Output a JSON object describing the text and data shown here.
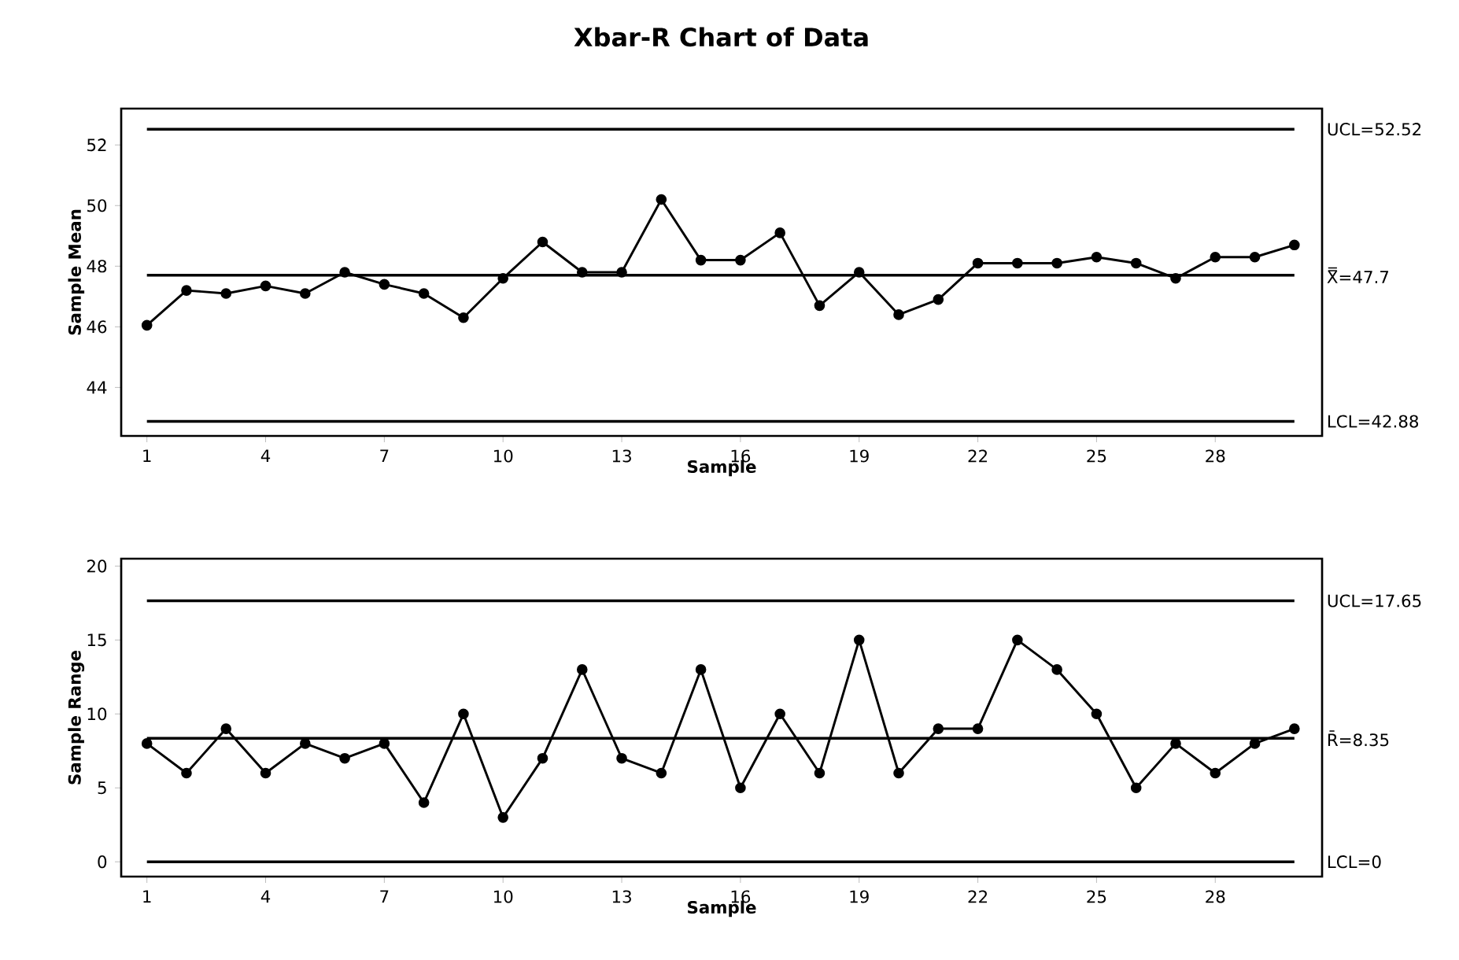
{
  "chart_data": [
    {
      "type": "line",
      "title": "Xbar-R Chart of Data",
      "xlabel": "Sample",
      "ylabel": "Sample Mean",
      "marker": "circle",
      "x": [
        1,
        2,
        3,
        4,
        5,
        6,
        7,
        8,
        9,
        10,
        11,
        12,
        13,
        14,
        15,
        16,
        17,
        18,
        19,
        20,
        21,
        22,
        23,
        24,
        25,
        26,
        27,
        28,
        29,
        30
      ],
      "series": [
        {
          "color": "#000000",
          "values": [
            46.05,
            47.2,
            47.1,
            47.35,
            47.1,
            47.8,
            47.4,
            47.1,
            46.3,
            47.6,
            48.8,
            47.8,
            47.8,
            50.2,
            48.2,
            48.2,
            49.1,
            46.7,
            47.8,
            46.4,
            46.9,
            48.1,
            48.1,
            48.1,
            48.3,
            48.1,
            47.6,
            48.3,
            48.3,
            48.7
          ]
        }
      ],
      "xlim": [
        0.35,
        30.7
      ],
      "ylim": [
        42.4,
        53.2
      ],
      "xticks": [
        1,
        4,
        7,
        10,
        13,
        16,
        19,
        22,
        25,
        28
      ],
      "yticks": [
        44,
        46,
        48,
        50,
        52
      ],
      "ref_lines": [
        {
          "axis": "y",
          "value": 52.52,
          "label": "UCL=52.52"
        },
        {
          "axis": "y",
          "value": 47.7,
          "label": "X̿=47.7"
        },
        {
          "axis": "y",
          "value": 42.88,
          "label": "LCL=42.88"
        }
      ]
    },
    {
      "type": "line",
      "xlabel": "Sample",
      "ylabel": "Sample Range",
      "marker": "circle",
      "x": [
        1,
        2,
        3,
        4,
        5,
        6,
        7,
        8,
        9,
        10,
        11,
        12,
        13,
        14,
        15,
        16,
        17,
        18,
        19,
        20,
        21,
        22,
        23,
        24,
        25,
        26,
        27,
        28,
        29,
        30
      ],
      "series": [
        {
          "color": "#000000",
          "values": [
            8,
            6,
            9,
            6,
            8,
            7,
            8,
            4,
            10,
            3,
            7,
            13,
            7,
            6,
            13,
            5,
            10,
            6,
            15,
            6,
            9,
            9,
            15,
            13,
            10,
            5,
            8,
            6,
            8,
            9
          ]
        }
      ],
      "xlim": [
        0.35,
        30.7
      ],
      "ylim": [
        -1,
        20.5
      ],
      "xticks": [
        1,
        4,
        7,
        10,
        13,
        16,
        19,
        22,
        25,
        28
      ],
      "yticks": [
        0,
        5,
        10,
        15,
        20
      ],
      "ref_lines": [
        {
          "axis": "y",
          "value": 17.65,
          "label": "UCL=17.65"
        },
        {
          "axis": "y",
          "value": 8.35,
          "label": "R̄=8.35"
        },
        {
          "axis": "y",
          "value": 0,
          "label": "LCL=0"
        }
      ]
    }
  ]
}
